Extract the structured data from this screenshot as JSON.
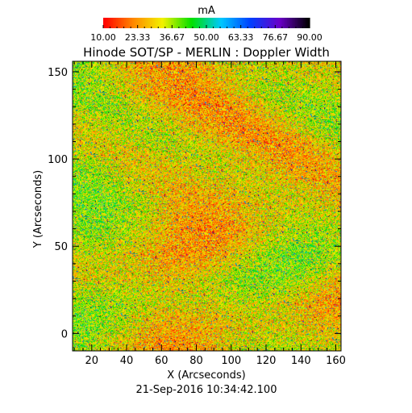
{
  "colorbar": {
    "unit": "mA",
    "ticks": [
      "10.00",
      "23.33",
      "36.67",
      "50.00",
      "63.33",
      "76.67",
      "90.00"
    ],
    "range": [
      10,
      90
    ],
    "colormap": [
      "#ff0000",
      "#ff8800",
      "#f2f200",
      "#00e000",
      "#00c8ff",
      "#0040ff",
      "#6a00c8",
      "#000000"
    ]
  },
  "chart_data": {
    "type": "heatmap",
    "title": "Hinode SOT/SP - MERLIN : Doppler Width",
    "xlabel": "X (Arcseconds)",
    "ylabel": "Y (Arcseconds)",
    "xlim": [
      9,
      163
    ],
    "ylim": [
      -10,
      156
    ],
    "xticks": [
      20,
      40,
      60,
      80,
      100,
      120,
      140,
      160
    ],
    "yticks": [
      0,
      50,
      100,
      150
    ],
    "value_unit": "mA",
    "value_range": [
      10,
      90
    ],
    "dominant_values_mA": [
      25,
      45
    ],
    "background": "noisy granular field, mostly orange/yellow/green with sparse cyan, blue and black pixels"
  },
  "timestamp": "21-Sep-2016 10:34:42.100"
}
